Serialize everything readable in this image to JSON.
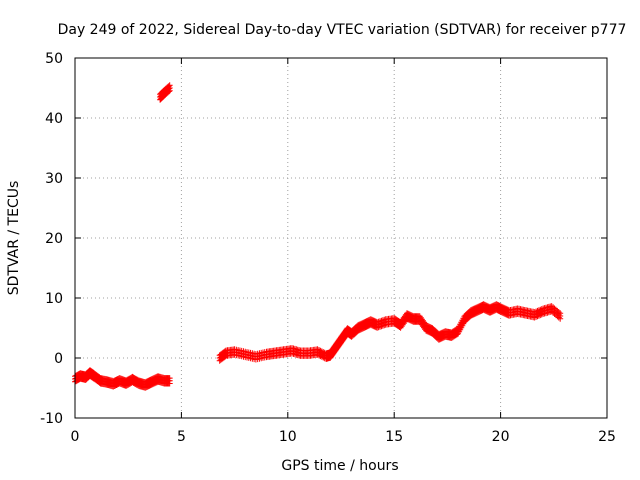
{
  "chart_data": {
    "type": "scatter",
    "title": "Day 249 of 2022, Sidereal Day-to-day VTEC variation (SDTVAR) for receiver p777",
    "xlabel": "GPS time / hours",
    "ylabel": "SDTVAR / TECUs",
    "xlim": [
      0,
      25
    ],
    "ylim": [
      -10,
      50
    ],
    "xticks": [
      "0",
      "5",
      "10",
      "15",
      "20",
      "25"
    ],
    "yticks": [
      "-10",
      "0",
      "10",
      "20",
      "30",
      "40",
      "50"
    ],
    "grid": true,
    "marker": "plus",
    "color": "#ff0000",
    "series": [
      {
        "name": "SDTVAR",
        "x": [
          0.0,
          0.25,
          0.5,
          0.7,
          0.9,
          1.2,
          1.5,
          1.8,
          2.1,
          2.4,
          2.7,
          3.0,
          3.3,
          3.6,
          3.9,
          4.2,
          4.45,
          4.0,
          4.2,
          4.45,
          6.8,
          7.1,
          7.5,
          8.0,
          8.5,
          9.0,
          9.4,
          9.8,
          10.2,
          10.6,
          11.0,
          11.4,
          11.8,
          12.0,
          12.2,
          12.4,
          12.6,
          12.8,
          13.0,
          13.3,
          13.6,
          13.9,
          14.2,
          14.6,
          15.0,
          15.3,
          15.6,
          15.9,
          16.2,
          16.5,
          16.8,
          17.1,
          17.4,
          17.7,
          18.0,
          18.3,
          18.6,
          18.9,
          19.2,
          19.5,
          19.8,
          20.1,
          20.4,
          20.8,
          21.2,
          21.6,
          22.0,
          22.4,
          22.8
        ],
        "y": [
          -3.5,
          -3.0,
          -3.2,
          -2.5,
          -3.0,
          -3.8,
          -4.0,
          -4.3,
          -3.8,
          -4.2,
          -3.6,
          -4.2,
          -4.5,
          -4.0,
          -3.5,
          -3.8,
          -3.8,
          43.5,
          44.2,
          45.0,
          0.0,
          0.8,
          1.0,
          0.6,
          0.2,
          0.6,
          0.8,
          1.0,
          1.2,
          0.8,
          0.8,
          1.0,
          0.3,
          0.5,
          1.5,
          2.5,
          3.5,
          4.5,
          4.0,
          5.0,
          5.5,
          6.0,
          5.5,
          6.0,
          6.2,
          5.5,
          7.0,
          6.5,
          6.5,
          5.0,
          4.5,
          3.5,
          4.0,
          3.8,
          4.5,
          6.5,
          7.5,
          8.0,
          8.5,
          8.0,
          8.5,
          8.0,
          7.5,
          7.8,
          7.5,
          7.2,
          7.8,
          8.2,
          7.0
        ]
      }
    ]
  }
}
